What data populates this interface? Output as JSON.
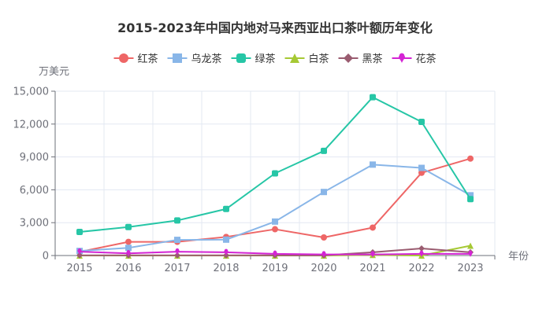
{
  "chart_data": {
    "type": "line",
    "title": "2015-2023年中国内地对马来西亚出口茶叶额历年变化",
    "ylabel": "万美元",
    "xlabel": "年份",
    "ylim": [
      0,
      15000
    ],
    "yticks": [
      0,
      3000,
      6000,
      9000,
      12000,
      15000
    ],
    "ytick_labels": [
      "0",
      "3,000",
      "6,000",
      "9,000",
      "12,000",
      "15,000"
    ],
    "categories": [
      "2015",
      "2016",
      "2017",
      "2018",
      "2019",
      "2020",
      "2021",
      "2022",
      "2023"
    ],
    "legend_position": "top-center",
    "grid": true,
    "series": [
      {
        "name": "红茶",
        "color": "#ee6666",
        "marker": "circle",
        "values": [
          330,
          1250,
          1250,
          1700,
          2400,
          1650,
          2550,
          7550,
          8850
        ]
      },
      {
        "name": "乌龙茶",
        "color": "#89b6e8",
        "marker": "square",
        "values": [
          420,
          700,
          1430,
          1450,
          3100,
          5800,
          8300,
          8000,
          5500
        ]
      },
      {
        "name": "绿茶",
        "color": "#26c6a6",
        "marker": "roundRect",
        "values": [
          2150,
          2600,
          3200,
          4250,
          7500,
          9550,
          14450,
          12200,
          5150
        ]
      },
      {
        "name": "白茶",
        "color": "#a6c934",
        "marker": "triangle",
        "values": [
          0,
          0,
          0,
          0,
          0,
          0,
          50,
          0,
          900
        ]
      },
      {
        "name": "黑茶",
        "color": "#9a5c70",
        "marker": "diamond",
        "values": [
          20,
          20,
          20,
          20,
          20,
          20,
          300,
          650,
          300
        ]
      },
      {
        "name": "花茶",
        "color": "#d424d4",
        "marker": "pin",
        "values": [
          350,
          200,
          350,
          300,
          150,
          100,
          100,
          150,
          150
        ]
      }
    ]
  }
}
